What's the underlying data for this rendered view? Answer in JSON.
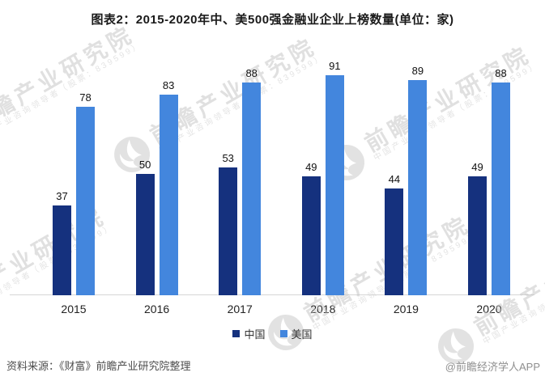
{
  "title": "图表2：2015-2020年中、美500强金融业企业上榜数量(单位：家)",
  "chart_data": {
    "type": "bar",
    "categories": [
      "2015",
      "2016",
      "2017",
      "2018",
      "2019",
      "2020"
    ],
    "series": [
      {
        "name": "中国",
        "color": "#15317e",
        "values": [
          37,
          50,
          53,
          49,
          44,
          49
        ]
      },
      {
        "name": "美国",
        "color": "#4386dd",
        "values": [
          78,
          83,
          88,
          91,
          89,
          88
        ]
      }
    ],
    "ylim": [
      0,
      100
    ],
    "grid": false,
    "legend_position": "bottom",
    "value_labels": true,
    "unit": "家",
    "axis_color": "#d6d6d6"
  },
  "footer": {
    "source": "资料来源：《财富》前瞻产业研究院整理",
    "credit": "@前瞻经济学人APP"
  },
  "watermark": {
    "logo": "qianzhan-phoenix-logo",
    "text_main": "前瞻产业研究院",
    "text_sub": "中国产业咨询领导者（股票：839599）",
    "color": "#c6c6c6"
  }
}
